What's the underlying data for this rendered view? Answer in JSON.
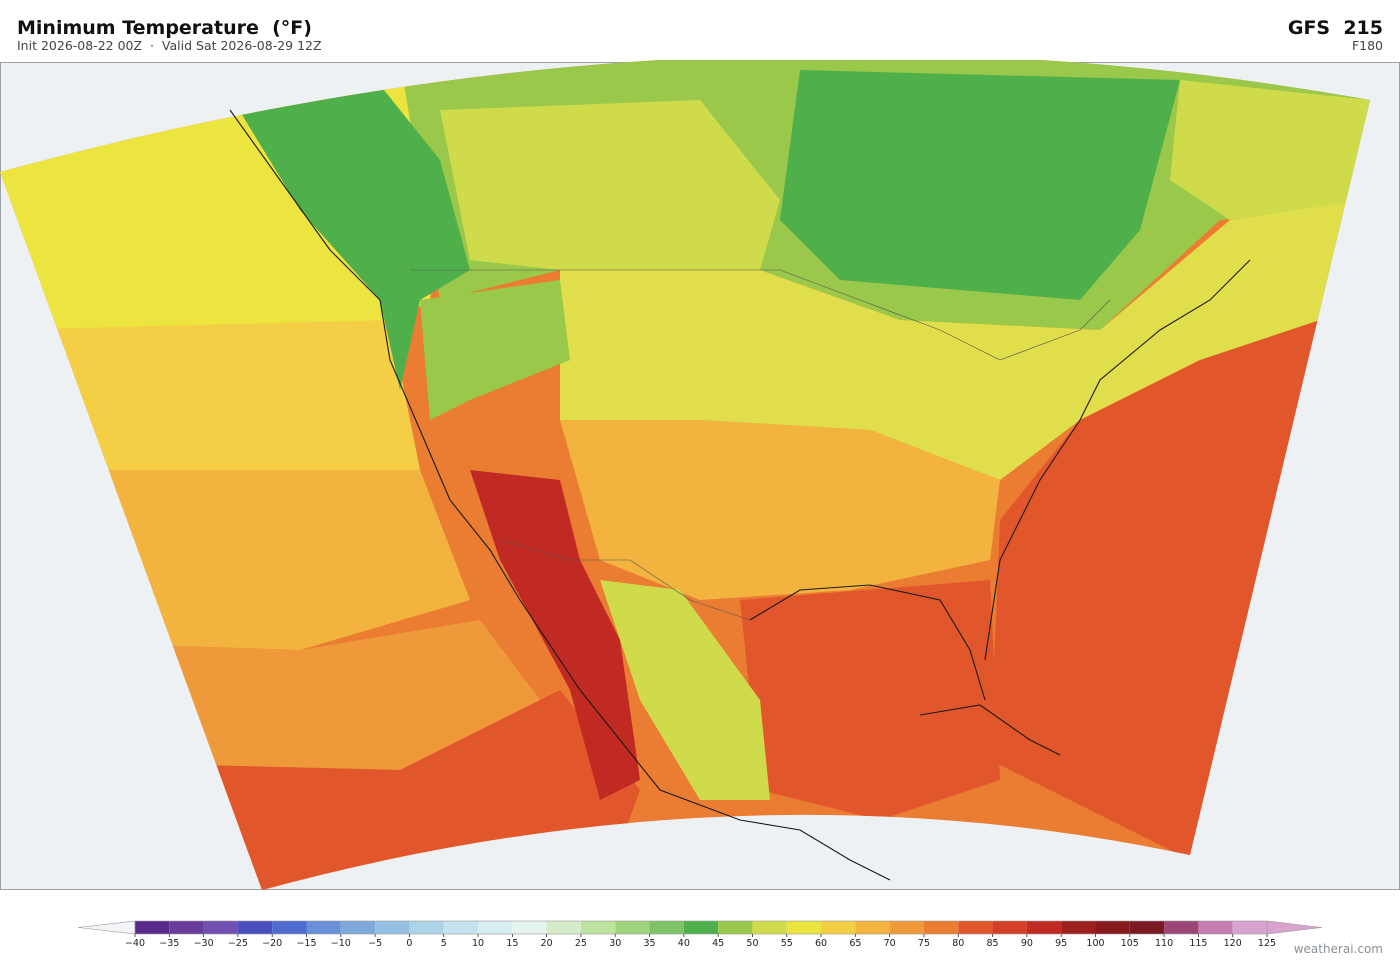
{
  "header": {
    "title": "Minimum Temperature  (°F)",
    "subtitle": "Init 2026-08-22 00Z  ·  Valid Sat 2026-08-29 12Z",
    "model": "GFS  215",
    "forecast_hour": "F180"
  },
  "colorbar": {
    "ticks": [
      {
        "value": -40,
        "label": "−40"
      },
      {
        "value": -35,
        "label": "−35"
      },
      {
        "value": -30,
        "label": "−30"
      },
      {
        "value": -25,
        "label": "−25"
      },
      {
        "value": -20,
        "label": "−20"
      },
      {
        "value": -15,
        "label": "−15"
      },
      {
        "value": -10,
        "label": "−10"
      },
      {
        "value": -5,
        "label": "−5"
      },
      0,
      5,
      10,
      15,
      20,
      25,
      30,
      35,
      40,
      45,
      50,
      55,
      60,
      65,
      70,
      75,
      80,
      85,
      90,
      95,
      100,
      105,
      110,
      115,
      120,
      125
    ],
    "colors": [
      "#5b2a8f",
      "#6a3d9a",
      "#7050b0",
      "#4a4fc0",
      "#4e6bd0",
      "#6a8fd8",
      "#7fa8dc",
      "#95bfe3",
      "#aed4ea",
      "#c4e3ef",
      "#d8eef1",
      "#e5f4ec",
      "#d6ecc9",
      "#bde3a0",
      "#9fd57d",
      "#7ec465",
      "#4fb04b",
      "#99c84a",
      "#cfdb4a",
      "#ece43f",
      "#f4cf45",
      "#f3b43f",
      "#ee9a3a",
      "#eb7d33",
      "#e2562b",
      "#d53e26",
      "#c02a22",
      "#9e1f1f",
      "#861a1c",
      "#7a1a22",
      "#9b4677",
      "#c57cb0",
      "#d9a3cf"
    ],
    "extend_low_color": "#f4f4f8",
    "extend_high_color": "#d9a3cf"
  },
  "credit": "weatherai.com"
}
